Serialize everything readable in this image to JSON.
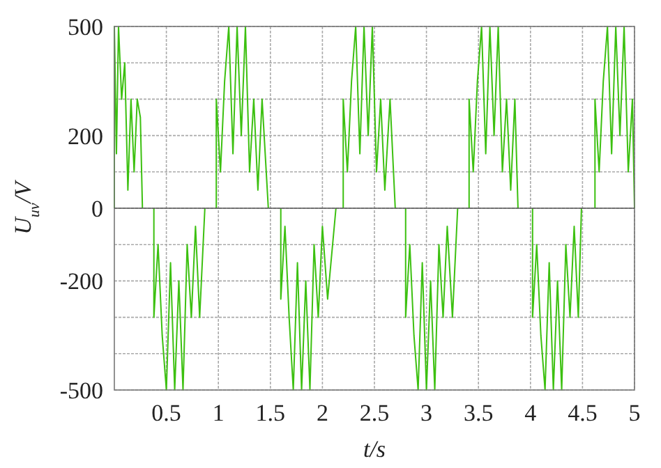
{
  "chart_data": {
    "type": "line",
    "xlabel": "t/s",
    "ylabel": "U$_{uv}$/V",
    "xlim": [
      0,
      5
    ],
    "ylim": [
      -500,
      500
    ],
    "xticks": [
      0.5,
      1,
      1.5,
      2,
      2.5,
      3,
      3.5,
      4,
      4.5,
      5
    ],
    "yticks": [
      500,
      {
        "value": 400,
        "label": null
      },
      {
        "value": 300,
        "label": null
      },
      200,
      {
        "value": 100,
        "label": null
      },
      0,
      {
        "value": -100,
        "label": null
      },
      -200,
      {
        "value": -300,
        "label": null
      },
      {
        "value": -400,
        "label": null
      },
      -500
    ],
    "grid": true,
    "marker": "none",
    "line_style": "solid",
    "series": [
      {
        "color": "#3cc010",
        "x": [
          0,
          0,
          0.02,
          0.04,
          0.07,
          0.1,
          0.13,
          0.16,
          0.19,
          0.22,
          0.25,
          0.27,
          0.32,
          0.38,
          0.38,
          0.42,
          0.46,
          0.5,
          0.54,
          0.58,
          0.62,
          0.66,
          0.7,
          0.74,
          0.78,
          0.82,
          0.87,
          0.92,
          0.98,
          0.98,
          1.02,
          1.06,
          1.1,
          1.14,
          1.18,
          1.22,
          1.26,
          1.3,
          1.34,
          1.38,
          1.42,
          1.48,
          1.54,
          1.6,
          1.6,
          1.64,
          1.68,
          1.72,
          1.76,
          1.8,
          1.84,
          1.88,
          1.92,
          1.96,
          2.0,
          2.05,
          2.13,
          2.16,
          2.2,
          2.2,
          2.24,
          2.28,
          2.32,
          2.36,
          2.4,
          2.44,
          2.48,
          2.52,
          2.56,
          2.6,
          2.65,
          2.7,
          2.75,
          2.8,
          2.8,
          2.84,
          2.88,
          2.92,
          2.96,
          3.0,
          3.04,
          3.08,
          3.12,
          3.16,
          3.2,
          3.25,
          3.3,
          3.35,
          3.41,
          3.41,
          3.45,
          3.49,
          3.53,
          3.57,
          3.61,
          3.65,
          3.69,
          3.73,
          3.77,
          3.81,
          3.85,
          3.88,
          3.95,
          4.02,
          4.02,
          4.06,
          4.1,
          4.14,
          4.18,
          4.22,
          4.26,
          4.3,
          4.34,
          4.38,
          4.42,
          4.46,
          4.49,
          4.55,
          4.62,
          4.62,
          4.66,
          4.7,
          4.74,
          4.78,
          4.82,
          4.86,
          4.9,
          4.94,
          4.98,
          5.0
        ],
        "values": [
          0,
          500,
          150,
          500,
          300,
          400,
          50,
          300,
          100,
          300,
          250,
          0,
          null,
          0,
          -300,
          -100,
          -350,
          -500,
          -150,
          -500,
          -200,
          -500,
          -100,
          -300,
          -50,
          -300,
          0,
          null,
          0,
          300,
          100,
          350,
          500,
          150,
          500,
          200,
          500,
          100,
          300,
          50,
          300,
          0,
          null,
          0,
          -250,
          -50,
          -300,
          -500,
          -150,
          -500,
          -200,
          -500,
          -100,
          -300,
          -50,
          -250,
          0,
          null,
          0,
          300,
          100,
          350,
          500,
          150,
          500,
          200,
          500,
          100,
          300,
          50,
          300,
          0,
          null,
          0,
          -300,
          -100,
          -350,
          -500,
          -150,
          -500,
          -200,
          -500,
          -100,
          -300,
          -50,
          -300,
          0,
          null,
          0,
          300,
          100,
          350,
          500,
          150,
          500,
          200,
          500,
          100,
          300,
          50,
          300,
          0,
          null,
          0,
          -300,
          -100,
          -350,
          -500,
          -150,
          -500,
          -200,
          -500,
          -100,
          -300,
          -50,
          -300,
          0,
          null,
          0,
          300,
          100,
          350,
          500,
          150,
          500,
          200,
          500,
          100,
          300,
          0
        ]
      }
    ]
  }
}
